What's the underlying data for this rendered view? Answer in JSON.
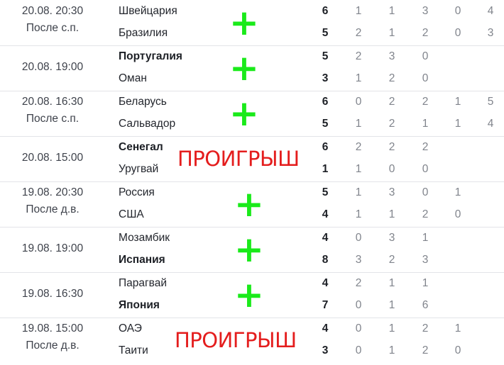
{
  "matches": [
    {
      "date": "20.08. 20:30",
      "note": "После с.п.",
      "home": {
        "name": "Швейцария",
        "total": "6",
        "periods": [
          "1",
          "1",
          "3",
          "0",
          "4"
        ],
        "winner": false
      },
      "away": {
        "name": "Бразилия",
        "total": "5",
        "periods": [
          "2",
          "1",
          "2",
          "0",
          "3"
        ],
        "winner": false
      },
      "mark": "+",
      "mark_type": "plus"
    },
    {
      "date": "20.08. 19:00",
      "note": "",
      "home": {
        "name": "Португалия",
        "total": "5",
        "periods": [
          "2",
          "3",
          "0"
        ],
        "winner": true
      },
      "away": {
        "name": "Оман",
        "total": "3",
        "periods": [
          "1",
          "2",
          "0"
        ],
        "winner": false
      },
      "mark": "+",
      "mark_type": "plus"
    },
    {
      "date": "20.08. 16:30",
      "note": "После с.п.",
      "home": {
        "name": "Беларусь",
        "total": "6",
        "periods": [
          "0",
          "2",
          "2",
          "1",
          "5"
        ],
        "winner": false
      },
      "away": {
        "name": "Сальвадор",
        "total": "5",
        "periods": [
          "1",
          "2",
          "1",
          "1",
          "4"
        ],
        "winner": false
      },
      "mark": "+",
      "mark_type": "plus"
    },
    {
      "date": "20.08. 15:00",
      "note": "",
      "home": {
        "name": "Сенегал",
        "total": "6",
        "periods": [
          "2",
          "2",
          "2"
        ],
        "winner": true
      },
      "away": {
        "name": "Уругвай",
        "total": "1",
        "periods": [
          "1",
          "0",
          "0"
        ],
        "winner": false
      },
      "mark": "ПРОИГРЫШ",
      "mark_type": "lose"
    },
    {
      "date": "19.08. 20:30",
      "note": "После д.в.",
      "home": {
        "name": "Россия",
        "total": "5",
        "periods": [
          "1",
          "3",
          "0",
          "1"
        ],
        "winner": false
      },
      "away": {
        "name": "США",
        "total": "4",
        "periods": [
          "1",
          "1",
          "2",
          "0"
        ],
        "winner": false
      },
      "mark": "+",
      "mark_type": "plus"
    },
    {
      "date": "19.08. 19:00",
      "note": "",
      "home": {
        "name": "Мозамбик",
        "total": "4",
        "periods": [
          "0",
          "3",
          "1"
        ],
        "winner": false
      },
      "away": {
        "name": "Испания",
        "total": "8",
        "periods": [
          "3",
          "2",
          "3"
        ],
        "winner": true
      },
      "mark": "+",
      "mark_type": "plus"
    },
    {
      "date": "19.08. 16:30",
      "note": "",
      "home": {
        "name": "Парагвай",
        "total": "4",
        "periods": [
          "2",
          "1",
          "1"
        ],
        "winner": false
      },
      "away": {
        "name": "Япония",
        "total": "7",
        "periods": [
          "0",
          "1",
          "6"
        ],
        "winner": true
      },
      "mark": "+",
      "mark_type": "plus"
    },
    {
      "date": "19.08. 15:00",
      "note": "После д.в.",
      "home": {
        "name": "ОАЭ",
        "total": "4",
        "periods": [
          "0",
          "1",
          "2",
          "1"
        ],
        "winner": false
      },
      "away": {
        "name": "Таити",
        "total": "3",
        "periods": [
          "0",
          "1",
          "2",
          "0"
        ],
        "winner": false
      },
      "mark": "ПРОИГРЫШ",
      "mark_type": "lose"
    }
  ],
  "colors": {
    "plus": "#1aea1a",
    "lose": "#e41d1d",
    "divider": "#e3e4e8"
  }
}
